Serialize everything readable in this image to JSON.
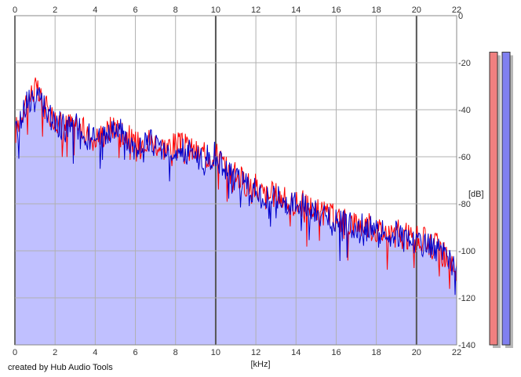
{
  "credit": "created by Hub Audio Tools",
  "chart_data": {
    "type": "area",
    "title": "",
    "xlabel": "[kHz]",
    "ylabel": "[dB]",
    "xlim": [
      0,
      22
    ],
    "ylim": [
      -140,
      0
    ],
    "x_ticks": [
      0,
      2,
      4,
      6,
      8,
      10,
      12,
      14,
      16,
      18,
      20,
      22
    ],
    "y_ticks": [
      0,
      -20,
      -40,
      -60,
      -80,
      -100,
      -120,
      -140
    ],
    "grid": true,
    "x": [
      0.0,
      0.5,
      1.0,
      1.5,
      2.0,
      2.5,
      3.0,
      3.5,
      4.0,
      4.5,
      5.0,
      5.5,
      6.0,
      6.5,
      7.0,
      7.5,
      8.0,
      8.5,
      9.0,
      9.5,
      10.0,
      10.5,
      11.0,
      11.5,
      12.0,
      12.5,
      13.0,
      13.5,
      14.0,
      14.5,
      15.0,
      15.5,
      16.0,
      16.5,
      17.0,
      17.5,
      18.0,
      18.5,
      19.0,
      19.5,
      20.0,
      20.5,
      21.0,
      21.5,
      22.0
    ],
    "series": [
      {
        "color": "#ff0000",
        "values": [
          -50,
          -37,
          -31,
          -39,
          -44,
          -47,
          -45,
          -50,
          -52,
          -50,
          -46,
          -50,
          -55,
          -52,
          -54,
          -56,
          -55,
          -56,
          -58,
          -60,
          -58,
          -65,
          -68,
          -71,
          -73,
          -77,
          -76,
          -79,
          -80,
          -80,
          -83,
          -85,
          -86,
          -88,
          -88,
          -89,
          -91,
          -92,
          -92,
          -94,
          -95,
          -96,
          -98,
          -103,
          -108
        ]
      },
      {
        "color": "#0000cc",
        "values": [
          -52,
          -38,
          -33,
          -40,
          -45,
          -48,
          -46,
          -51,
          -53,
          -51,
          -48,
          -51,
          -56,
          -53,
          -55,
          -57,
          -56,
          -57,
          -59,
          -61,
          -59,
          -66,
          -69,
          -72,
          -74,
          -78,
          -77,
          -80,
          -81,
          -81,
          -84,
          -86,
          -87,
          -89,
          -89,
          -90,
          -92,
          -93,
          -93,
          -95,
          -96,
          -97,
          -99,
          -104,
          -109
        ]
      }
    ],
    "fill_color": "#c0c0ff",
    "meters": [
      {
        "color": "#f08080",
        "level": 0.97
      },
      {
        "color": "#8080f0",
        "level": 0.97
      }
    ]
  }
}
